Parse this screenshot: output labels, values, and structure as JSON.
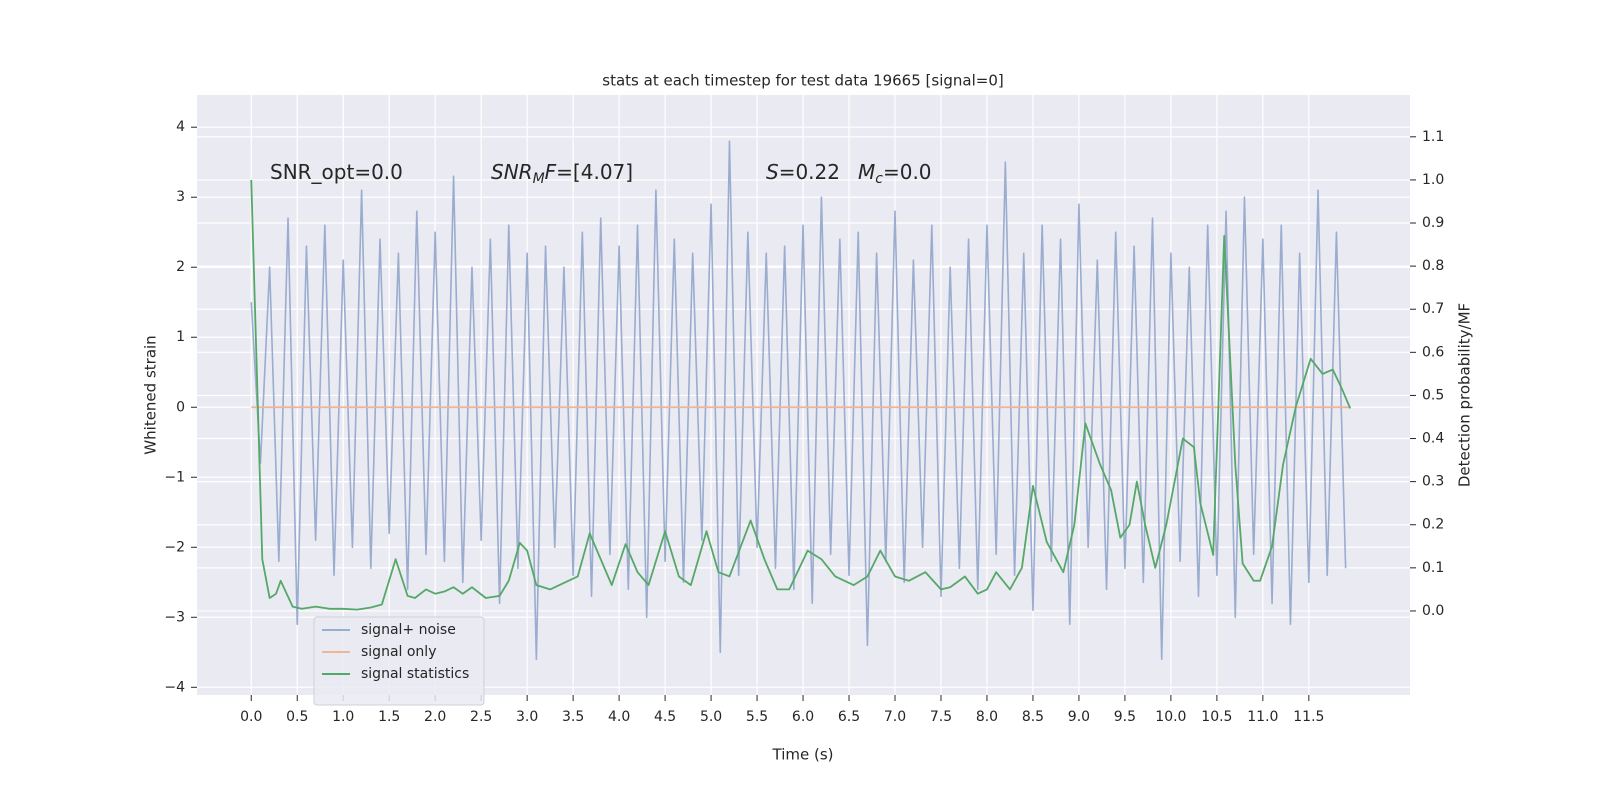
{
  "chart_data": {
    "type": "line",
    "title": "stats at each timestep for test data 19665 [signal=0]",
    "xlabel": "Time (s)",
    "ylabel": "Whitened strain",
    "y2label": "Detection probability/MF",
    "annotations": [
      {
        "parts": [
          "SNR_opt=0.0"
        ]
      },
      {
        "parts": [
          "SNR",
          "M",
          "F",
          "=[4.07]"
        ]
      },
      {
        "parts": [
          "S",
          "=0.22",
          "M",
          "c",
          "=0.0"
        ]
      }
    ],
    "xlim": [
      -0.59,
      12.6
    ],
    "ylim": [
      -4.11,
      4.46
    ],
    "y2lim": [
      -0.195,
      1.197
    ],
    "xticks": [
      {
        "value": 0,
        "label": "0.0"
      },
      0.5,
      {
        "value": 1,
        "label": "1.0"
      },
      1.5,
      {
        "value": 2,
        "label": "2.0"
      },
      2.5,
      {
        "value": 3,
        "label": "3.0"
      },
      3.5,
      {
        "value": 4,
        "label": "4.0"
      },
      4.5,
      {
        "value": 5,
        "label": "5.0"
      },
      5.5,
      {
        "value": 6,
        "label": "6.0"
      },
      6.5,
      {
        "value": 7,
        "label": "7.0"
      },
      7.5,
      {
        "value": 8,
        "label": "8.0"
      },
      8.5,
      {
        "value": 9,
        "label": "9.0"
      },
      9.5,
      {
        "value": 10,
        "label": "10.0"
      },
      10.5,
      {
        "value": 11,
        "label": "11.0"
      },
      11.5
    ],
    "yticks": [
      {
        "value": -4,
        "label": "−4"
      },
      {
        "value": -3,
        "label": "−3"
      },
      {
        "value": -2,
        "label": "−2"
      },
      {
        "value": -1,
        "label": "−1"
      },
      0,
      1,
      2,
      3,
      4
    ],
    "y2ticks": [
      {
        "value": 0,
        "label": "0.0"
      },
      0.1,
      0.2,
      0.3,
      0.4,
      0.5,
      0.6,
      0.7,
      0.8,
      0.9,
      {
        "value": 1,
        "label": "1.0"
      },
      1.1
    ],
    "grid": true,
    "legend": "lower left",
    "series": [
      {
        "name": "signal+ noise",
        "color": "#9aaccf",
        "axis": "y",
        "x": [
          0,
          0.1,
          0.2,
          0.3,
          0.4,
          0.5,
          0.6,
          0.7,
          0.8,
          0.9,
          1,
          1.1,
          1.2,
          1.3,
          1.4,
          1.5,
          1.6,
          1.7,
          1.8,
          1.9,
          2,
          2.1,
          2.2,
          2.3,
          2.4,
          2.5,
          2.6,
          2.7,
          2.8,
          2.9,
          3,
          3.1,
          3.2,
          3.3,
          3.4,
          3.5,
          3.6,
          3.7,
          3.8,
          3.9,
          4,
          4.1,
          4.2,
          4.3,
          4.4,
          4.5,
          4.6,
          4.7,
          4.8,
          4.9,
          5,
          5.1,
          5.2,
          5.3,
          5.4,
          5.5,
          5.6,
          5.7,
          5.8,
          5.9,
          6,
          6.1,
          6.2,
          6.3,
          6.4,
          6.5,
          6.6,
          6.7,
          6.8,
          6.9,
          7,
          7.1,
          7.2,
          7.3,
          7.4,
          7.5,
          7.6,
          7.7,
          7.8,
          7.9,
          8,
          8.1,
          8.2,
          8.3,
          8.4,
          8.5,
          8.6,
          8.7,
          8.8,
          8.9,
          9,
          9.1,
          9.2,
          9.3,
          9.4,
          9.5,
          9.6,
          9.7,
          9.8,
          9.9,
          10,
          10.1,
          10.2,
          10.3,
          10.4,
          10.5,
          10.6,
          10.7,
          10.8,
          10.9,
          11,
          11.1,
          11.2,
          11.3,
          11.4,
          11.5,
          11.6,
          11.7,
          11.8,
          11.9
        ],
        "values": [
          1.5,
          -0.8,
          2.0,
          -2.2,
          2.7,
          -3.1,
          2.3,
          -1.9,
          2.6,
          -2.4,
          2.1,
          -2.0,
          3.1,
          -2.3,
          2.4,
          -1.8,
          2.2,
          -2.6,
          2.8,
          -2.1,
          2.5,
          -2.2,
          3.3,
          -2.5,
          2.0,
          -1.9,
          2.4,
          -2.8,
          2.6,
          -2.3,
          2.2,
          -3.6,
          2.3,
          -2.0,
          2.0,
          -2.4,
          2.5,
          -2.7,
          2.7,
          -2.1,
          2.3,
          -2.6,
          2.6,
          -3.0,
          3.1,
          -2.2,
          2.4,
          -2.5,
          2.2,
          -1.9,
          2.9,
          -3.5,
          3.8,
          -2.4,
          2.5,
          -2.0,
          2.2,
          -2.3,
          2.3,
          -2.6,
          2.6,
          -2.8,
          3.0,
          -2.1,
          2.4,
          -2.4,
          2.5,
          -3.4,
          2.2,
          -2.2,
          2.8,
          -2.5,
          2.1,
          -2.0,
          2.6,
          -2.7,
          2.0,
          -2.3,
          2.4,
          -2.6,
          2.6,
          -2.1,
          3.5,
          -2.4,
          2.2,
          -2.9,
          2.6,
          -2.2,
          2.4,
          -3.1,
          2.9,
          -2.0,
          2.1,
          -2.6,
          2.5,
          -2.3,
          2.3,
          -2.5,
          2.7,
          -3.6,
          2.2,
          -2.2,
          2.0,
          -2.7,
          2.6,
          -2.4,
          2.8,
          -3.0,
          3.0,
          -2.1,
          2.4,
          -2.8,
          2.6,
          -3.1,
          2.2,
          -2.5,
          3.1,
          -2.4,
          2.5,
          -2.3
        ]
      },
      {
        "name": "signal only",
        "color": "#eeb597",
        "axis": "y",
        "x": [
          0,
          11.95
        ],
        "values": [
          0,
          0
        ]
      },
      {
        "name": "signal statistics",
        "color": "#55a868",
        "axis": "y2",
        "x": [
          0,
          0.12,
          0.2,
          0.27,
          0.32,
          0.45,
          0.55,
          0.7,
          0.85,
          1.0,
          1.15,
          1.3,
          1.42,
          1.57,
          1.7,
          1.78,
          1.9,
          2.0,
          2.1,
          2.2,
          2.3,
          2.4,
          2.55,
          2.7,
          2.8,
          2.92,
          3.0,
          3.1,
          3.25,
          3.4,
          3.55,
          3.68,
          3.8,
          3.92,
          4.07,
          4.2,
          4.32,
          4.5,
          4.65,
          4.78,
          4.95,
          5.08,
          5.2,
          5.43,
          5.58,
          5.72,
          5.85,
          6.05,
          6.2,
          6.35,
          6.55,
          6.7,
          6.84,
          7.0,
          7.15,
          7.33,
          7.5,
          7.6,
          7.76,
          7.9,
          8.0,
          8.1,
          8.25,
          8.38,
          8.5,
          8.65,
          8.83,
          8.95,
          9.07,
          9.23,
          9.35,
          9.45,
          9.55,
          9.63,
          9.72,
          9.83,
          9.95,
          10.13,
          10.25,
          10.32,
          10.46,
          10.58,
          10.7,
          10.78,
          10.9,
          10.97,
          11.1,
          11.22,
          11.36,
          11.52,
          11.65,
          11.76,
          11.85,
          11.95
        ],
        "values": [
          1.0,
          0.12,
          0.03,
          0.04,
          0.07,
          0.01,
          0.005,
          0.01,
          0.005,
          0.005,
          0.003,
          0.008,
          0.015,
          0.12,
          0.035,
          0.03,
          0.05,
          0.04,
          0.045,
          0.055,
          0.04,
          0.055,
          0.03,
          0.035,
          0.07,
          0.158,
          0.14,
          0.06,
          0.05,
          0.065,
          0.08,
          0.18,
          0.12,
          0.06,
          0.155,
          0.09,
          0.06,
          0.185,
          0.08,
          0.06,
          0.185,
          0.09,
          0.08,
          0.21,
          0.12,
          0.05,
          0.05,
          0.14,
          0.12,
          0.08,
          0.06,
          0.08,
          0.14,
          0.08,
          0.07,
          0.09,
          0.05,
          0.055,
          0.08,
          0.04,
          0.05,
          0.09,
          0.05,
          0.1,
          0.29,
          0.16,
          0.09,
          0.2,
          0.435,
          0.34,
          0.28,
          0.17,
          0.2,
          0.3,
          0.2,
          0.1,
          0.2,
          0.4,
          0.38,
          0.25,
          0.13,
          0.87,
          0.34,
          0.11,
          0.07,
          0.07,
          0.15,
          0.34,
          0.475,
          0.585,
          0.55,
          0.56,
          0.52,
          0.47
        ]
      }
    ]
  }
}
